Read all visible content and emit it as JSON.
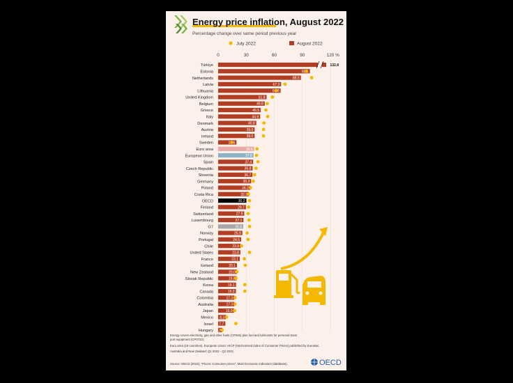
{
  "title": "Energy price inflation, August 2022",
  "subtitle": "Percentage change over same period previous year",
  "legend": {
    "july": "July 2022",
    "august": "August 2022"
  },
  "unit": "%",
  "footnotes": [
    "Energy covers electricity, gas and other fuels (CP045) plus fuel and lubricants for personal transport equipment (CP0722).",
    "Euro area (19 countries), European Union: HICP (Harmonised Index of Consumer Prices) published by Eurostat.",
    "Australia and New Zealand: Q1 2022 - Q2 2022."
  ],
  "source": "Source: OECD (2022), \"Prices: Consumer prices\", Main Economic Indicators (database).",
  "logo_text": "OECD",
  "colors": {
    "august": "#b13e22",
    "july": "#f5b800",
    "oecd_bar": "#000000",
    "eu_bar": "#8fb1c4",
    "euro_bar": "#e8a9a6",
    "g7_bar": "#a7a7a7",
    "panel_bg": "#fbf0ea",
    "accent": "#f5b800"
  },
  "chart_data": {
    "type": "bar",
    "orientation": "horizontal",
    "title": "Energy price inflation, August 2022",
    "subtitle": "Percentage change over same period previous year",
    "xlim": [
      0,
      120
    ],
    "xticks": [
      0,
      30,
      60,
      90,
      120
    ],
    "axis_break": true,
    "categories": [
      "Türkiye",
      "Estonia",
      "Netherlands",
      "Latvia",
      "Lithuania",
      "United Kingdom",
      "Belgium",
      "Greece",
      "Italy",
      "Denmark",
      "Austria",
      "Ireland",
      "Sweden",
      "Euro area",
      "European Union",
      "Spain",
      "Czech Republic",
      "Slovenia",
      "Germany",
      "Poland",
      "Costa Rica",
      "OECD",
      "Finland",
      "Switzerland",
      "Luxembourg",
      "G7",
      "Norway",
      "Portugal",
      "Chile",
      "United States",
      "France",
      "Iceland",
      "New Zealand",
      "Slovak Republic",
      "Korea",
      "Canada",
      "Colombia",
      "Australia",
      "Japan",
      "Mexico",
      "Israel",
      "Hungary"
    ],
    "series": [
      {
        "name": "August 2022",
        "type": "bar",
        "values": [
          132.8,
          98.1,
          88.5,
          67.3,
          66.8,
          51.8,
          49.8,
          45.5,
          44.9,
          40.8,
          39.0,
          39.0,
          19.6,
          38.6,
          37.8,
          37.4,
          36.8,
          36.7,
          35.3,
          34.2,
          32.9,
          30.2,
          29.7,
          27.9,
          27.1,
          26.8,
          25.9,
          24.6,
          23.9,
          23.8,
          23.1,
          20.1,
          20.0,
          19.8,
          19.1,
          19.0,
          17.3,
          17.3,
          16.9,
          8.3,
          7.7,
          4.3
        ]
      },
      {
        "name": "July 2022",
        "type": "dot",
        "values": [
          144.5,
          94.5,
          100.0,
          71.5,
          62.0,
          58.0,
          52.5,
          51.0,
          53.0,
          49.0,
          48.5,
          48.5,
          14.5,
          41.5,
          41.0,
          42.5,
          40.5,
          39.0,
          37.5,
          34.5,
          32.5,
          33.5,
          32.5,
          32.0,
          33.0,
          33.5,
          31.0,
          32.0,
          25.0,
          33.5,
          28.0,
          29.0,
          20.0,
          19.0,
          28.5,
          28.5,
          18.0,
          18.0,
          17.5,
          9.0,
          19.0,
          4.3
        ]
      }
    ],
    "data_labels": [
      "132.8",
      "98.1",
      "88.5",
      "67.3",
      "66.8",
      "51.8",
      "49.8",
      "45.5",
      "44.9",
      "40.8",
      "39.0",
      "39.0",
      "19.6",
      "38.6",
      "37.8",
      "37.4",
      "36.8",
      "36.7",
      "35.3",
      "34.2",
      "32.9",
      "30.2",
      "29.7",
      "27.9",
      "27.1",
      "26.8",
      "25.9",
      "24.6",
      "23.9",
      "23.8",
      "23.1",
      "20.1",
      "20.0",
      "19.8",
      "19.1",
      "19.0",
      "17.3",
      "17.3",
      "16.9",
      "8.3",
      "7.7",
      "4.3"
    ],
    "highlighted": {
      "OECD": "oecd_bar",
      "European Union": "eu_bar",
      "Euro area": "euro_bar",
      "G7": "g7_bar"
    }
  }
}
